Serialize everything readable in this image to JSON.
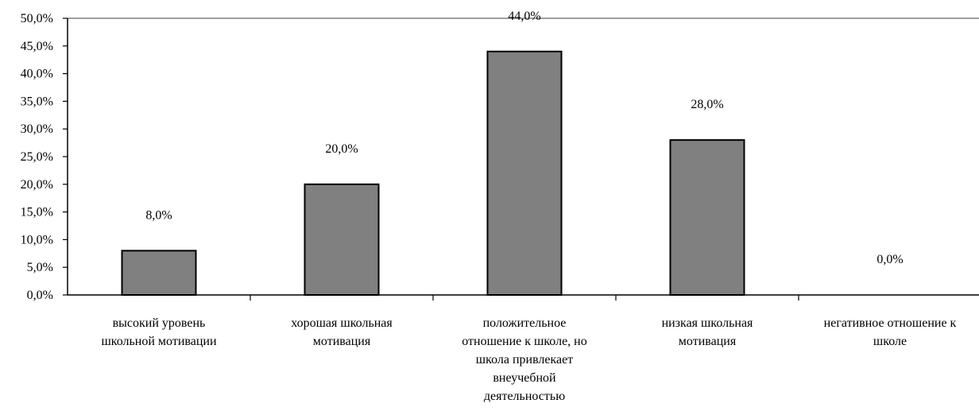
{
  "chart_data": {
    "type": "bar",
    "categories": [
      [
        "высокий уровень",
        "школьной мотивации"
      ],
      [
        "хорошая школьная",
        "мотивация"
      ],
      [
        "положительное",
        "отношение к школе, но",
        "школа привлекает",
        "внеучебной",
        "деятельностью"
      ],
      [
        "низкая школьная",
        "мотивация"
      ],
      [
        "негативное отношение к",
        "школе"
      ]
    ],
    "values": [
      8.0,
      20.0,
      44.0,
      28.0,
      0.0
    ],
    "data_labels": [
      "8,0%",
      "20,0%",
      "44,0%",
      "28,0%",
      "0,0%"
    ],
    "ylim": [
      0,
      50
    ],
    "yticks": [
      0,
      5,
      10,
      15,
      20,
      25,
      30,
      35,
      40,
      45,
      50
    ],
    "ytick_labels": [
      "0,0%",
      "5,0%",
      "10,0%",
      "15,0%",
      "20,0%",
      "25,0%",
      "30,0%",
      "35,0%",
      "40,0%",
      "45,0%",
      "50,0%"
    ],
    "grid": false,
    "colors": {
      "bar": "#808080",
      "bar_edge": "#000000",
      "axis": "#000000",
      "top_border": "#808080"
    }
  }
}
